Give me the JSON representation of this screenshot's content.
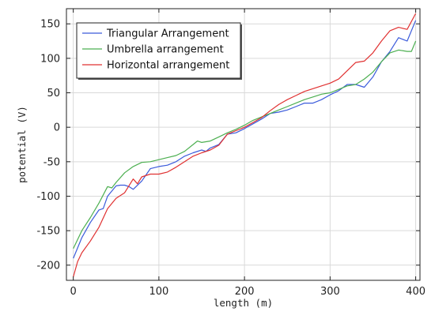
{
  "chart_data": {
    "type": "line",
    "xlabel": "length (m)",
    "ylabel": "potential (V)",
    "xlim": [
      -8,
      405
    ],
    "ylim": [
      -222,
      172
    ],
    "xticks": [
      0,
      100,
      200,
      300,
      400
    ],
    "yticks": [
      -200,
      -150,
      -100,
      -50,
      0,
      50,
      100,
      150
    ],
    "grid": true,
    "legend_position": "top-left",
    "series": [
      {
        "name": "Triangular Arrangement",
        "color": "#3b5bdb",
        "x": [
          0,
          10,
          20,
          30,
          35,
          40,
          50,
          55,
          60,
          65,
          70,
          80,
          90,
          100,
          110,
          120,
          130,
          140,
          150,
          155,
          160,
          170,
          180,
          190,
          200,
          210,
          220,
          230,
          240,
          250,
          260,
          270,
          280,
          290,
          300,
          310,
          320,
          330,
          340,
          350,
          360,
          370,
          380,
          390,
          400
        ],
        "y": [
          -190,
          -160,
          -138,
          -120,
          -118,
          -100,
          -85,
          -84,
          -84,
          -86,
          -90,
          -78,
          -60,
          -57,
          -55,
          -50,
          -42,
          -37,
          -33,
          -35,
          -30,
          -25,
          -10,
          -8,
          -2,
          5,
          12,
          20,
          22,
          25,
          30,
          35,
          35,
          40,
          47,
          53,
          62,
          62,
          58,
          73,
          95,
          110,
          130,
          125,
          155
        ]
      },
      {
        "name": "Umbrella arrangement",
        "color": "#4caf50",
        "x": [
          0,
          10,
          20,
          30,
          40,
          45,
          50,
          60,
          70,
          80,
          90,
          100,
          110,
          120,
          130,
          140,
          145,
          150,
          160,
          170,
          180,
          190,
          200,
          210,
          220,
          230,
          240,
          250,
          260,
          270,
          280,
          290,
          300,
          310,
          320,
          330,
          340,
          350,
          360,
          370,
          380,
          390,
          395,
          400
        ],
        "y": [
          -176,
          -150,
          -131,
          -110,
          -86,
          -88,
          -80,
          -66,
          -57,
          -51,
          -50,
          -47,
          -44,
          -41,
          -35,
          -25,
          -20,
          -22,
          -20,
          -14,
          -8,
          -3,
          3,
          10,
          15,
          20,
          25,
          30,
          35,
          40,
          44,
          48,
          50,
          55,
          60,
          62,
          70,
          80,
          95,
          108,
          112,
          110,
          110,
          125
        ]
      },
      {
        "name": "Horizontal arrangement",
        "color": "#e03131",
        "x": [
          0,
          5,
          10,
          20,
          30,
          40,
          50,
          60,
          70,
          75,
          80,
          90,
          100,
          110,
          120,
          130,
          140,
          150,
          160,
          170,
          180,
          190,
          200,
          210,
          220,
          230,
          240,
          250,
          260,
          270,
          280,
          290,
          300,
          310,
          320,
          330,
          340,
          350,
          360,
          370,
          380,
          390,
          400
        ],
        "y": [
          -217,
          -195,
          -182,
          -165,
          -145,
          -118,
          -103,
          -95,
          -75,
          -82,
          -72,
          -68,
          -68,
          -65,
          -58,
          -50,
          -42,
          -37,
          -33,
          -26,
          -10,
          -5,
          0,
          7,
          14,
          24,
          33,
          40,
          46,
          52,
          56,
          60,
          64,
          70,
          82,
          94,
          96,
          108,
          125,
          140,
          145,
          142,
          165
        ]
      }
    ]
  }
}
